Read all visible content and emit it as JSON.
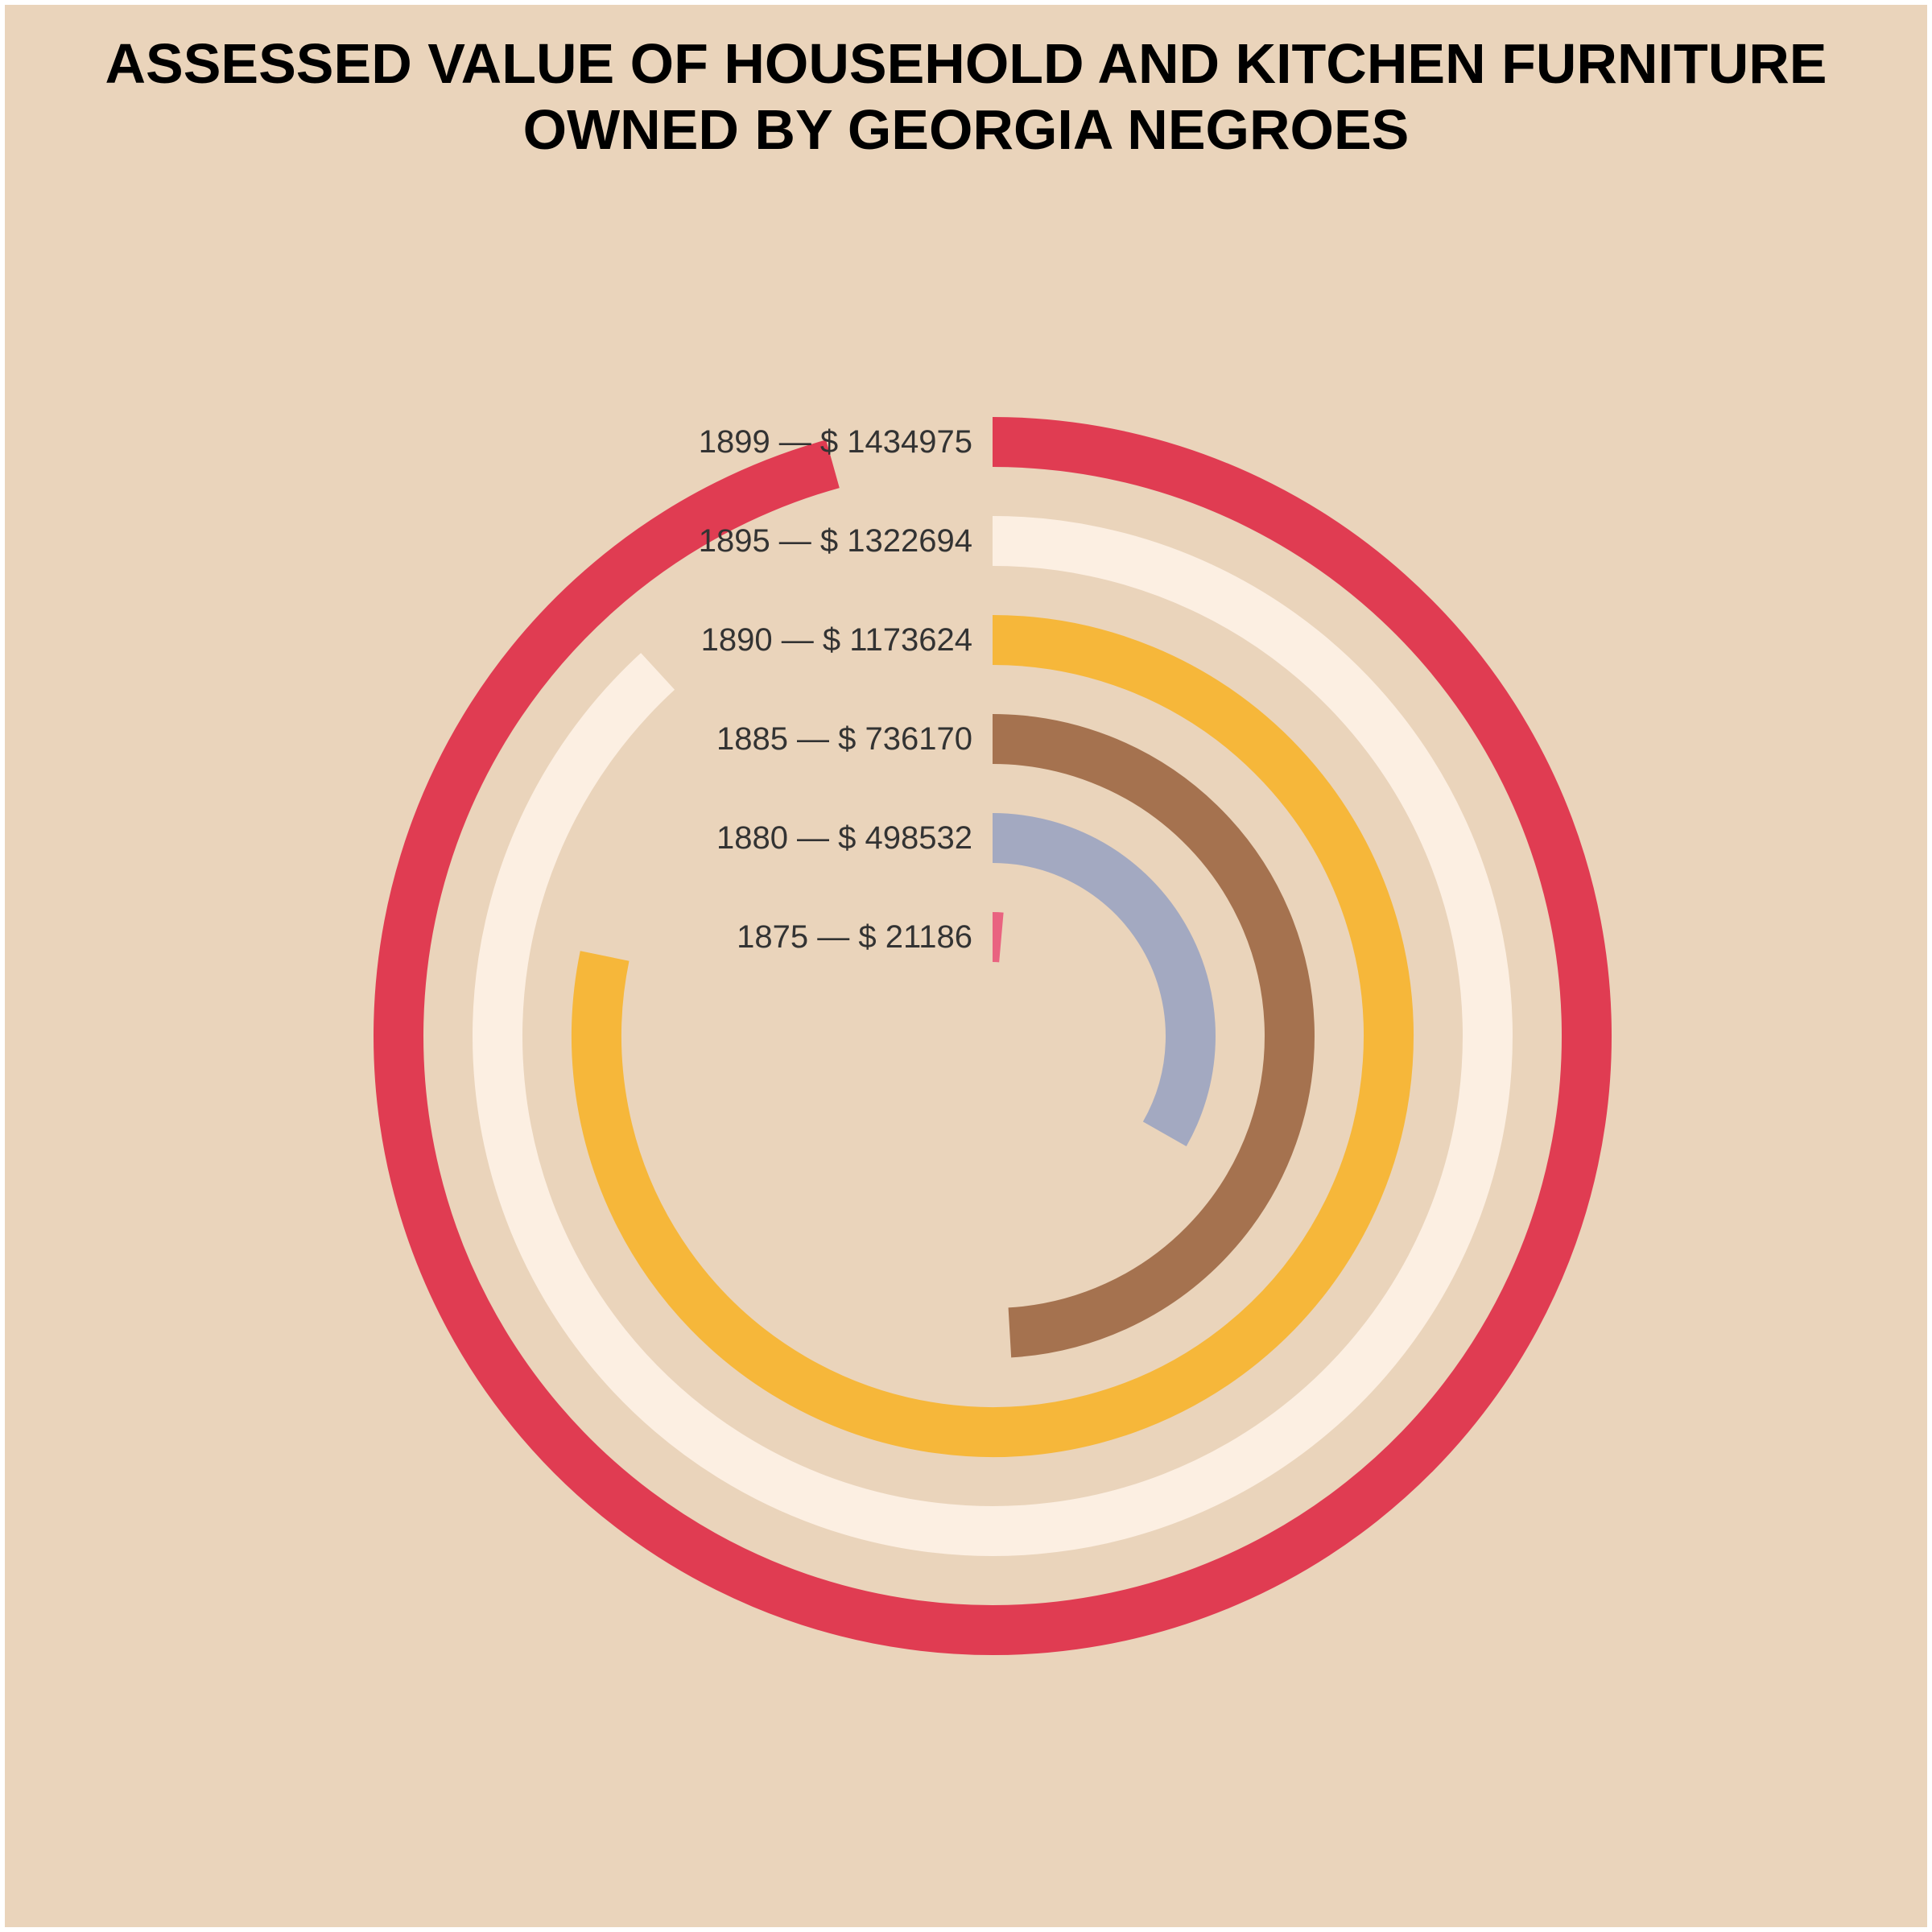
{
  "chart_data": {
    "type": "radial-bar",
    "title_lines": [
      "ASSESSED VALUE OF HOUSEHOLD AND KITCHEN FURNITURE",
      "OWNED BY GEORGIA NEGROES"
    ],
    "max_value": 1500000,
    "series": [
      {
        "year": "1875",
        "value": 21186,
        "label": "1875 — $ 21186",
        "color": "#E96380"
      },
      {
        "year": "1880",
        "value": 498532,
        "label": "1880 — $ 498532",
        "color": "#A3A9C1"
      },
      {
        "year": "1885",
        "value": 736170,
        "label": "1885 — $ 736170",
        "color": "#A5724F"
      },
      {
        "year": "1890",
        "value": 1173624,
        "label": "1890 — $ 1173624",
        "color": "#F6B73A"
      },
      {
        "year": "1895",
        "value": 1322694,
        "label": "1895 — $ 1322694",
        "color": "#FCEFE2"
      },
      {
        "year": "1899",
        "value": 1434975,
        "label": "1899 — $ 1434975",
        "color": "#E03C52"
      }
    ]
  },
  "colors": {
    "background": "#EAD4BB",
    "label_text": "#333333",
    "title_text": "#000000"
  }
}
